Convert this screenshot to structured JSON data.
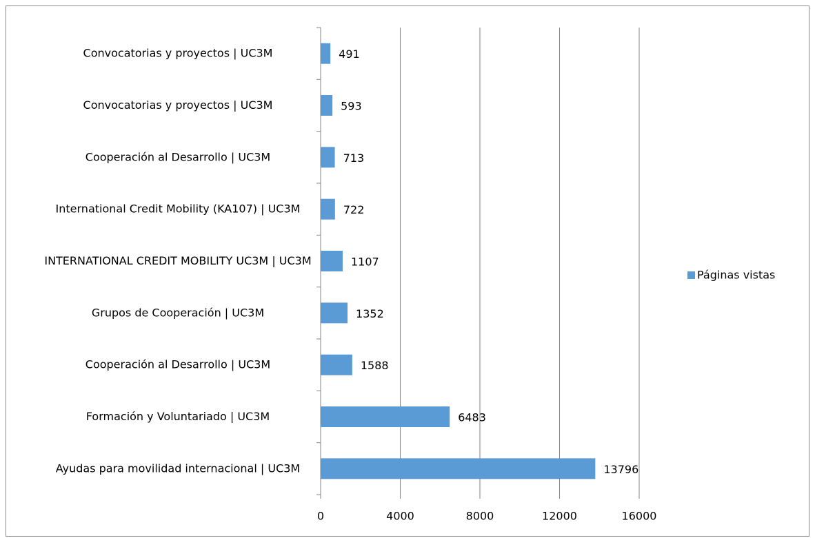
{
  "chart_data": {
    "type": "bar",
    "orientation": "horizontal",
    "categories": [
      "Convocatorias y proyectos | UC3M",
      "Convocatorias y proyectos | UC3M",
      "Cooperación al Desarrollo | UC3M",
      "International Credit Mobility (KA107) | UC3M",
      "INTERNATIONAL CREDIT MOBILITY UC3M | UC3M",
      "Grupos de Cooperación | UC3M",
      "Cooperación al Desarrollo | UC3M",
      "Formación y Voluntariado | UC3M",
      "Ayudas para movilidad internacional | UC3M"
    ],
    "series": [
      {
        "name": "Páginas vistas",
        "color": "#5b9bd5",
        "values": [
          491,
          593,
          713,
          722,
          1107,
          1352,
          1588,
          6483,
          13796
        ]
      }
    ],
    "xlim": [
      0,
      16000
    ],
    "xticks": [
      0,
      4000,
      8000,
      12000,
      16000
    ],
    "grid": true,
    "legend": "right"
  }
}
